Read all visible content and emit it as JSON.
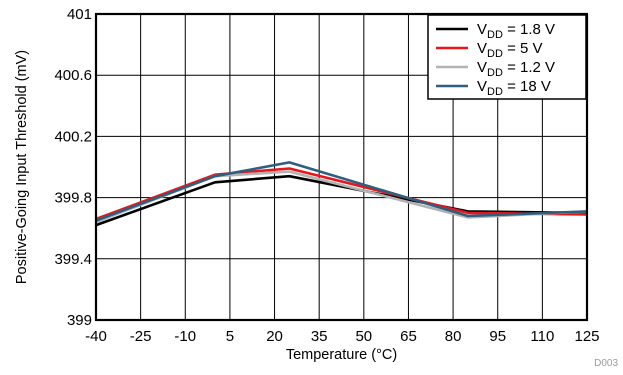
{
  "chart_data": {
    "type": "line",
    "xlabel": "Temperature (°C)",
    "ylabel": "Positive-Going Input Threshold (mV)",
    "xlim": [
      -40,
      125
    ],
    "ylim": [
      399,
      401
    ],
    "x_ticks": [
      -40,
      -25,
      -10,
      5,
      20,
      35,
      50,
      65,
      80,
      95,
      110,
      125
    ],
    "y_ticks": [
      "399",
      "399.4",
      "399.8",
      "400.2",
      "400.6",
      "401"
    ],
    "y_tick_values": [
      399,
      399.4,
      399.8,
      400.2,
      400.6,
      401
    ],
    "grid": true,
    "legend_position": "top-right",
    "series": [
      {
        "name_main": "V",
        "name_sub": "DD",
        "name_rest": " = 1.8 V",
        "color": "#000000",
        "x": [
          -40,
          0,
          25,
          85,
          125
        ],
        "y": [
          399.62,
          399.9,
          399.94,
          399.71,
          399.7
        ]
      },
      {
        "name_main": "V",
        "name_sub": "DD",
        "name_rest": " = 5 V",
        "color": "#e8161b",
        "x": [
          -40,
          0,
          25,
          85,
          125
        ],
        "y": [
          399.66,
          399.95,
          399.99,
          399.7,
          399.69
        ]
      },
      {
        "name_main": "V",
        "name_sub": "DD",
        "name_rest": " = 1.2 V",
        "color": "#b3b3b3",
        "x": [
          -40,
          0,
          25,
          85,
          125
        ],
        "y": [
          399.64,
          399.94,
          399.97,
          399.67,
          399.71
        ]
      },
      {
        "name_main": "V",
        "name_sub": "DD",
        "name_rest": " = 18 V",
        "color": "#2f5f7f",
        "x": [
          -40,
          0,
          25,
          85,
          125
        ],
        "y": [
          399.65,
          399.94,
          400.03,
          399.68,
          399.71
        ]
      }
    ],
    "footnote": "D003"
  }
}
